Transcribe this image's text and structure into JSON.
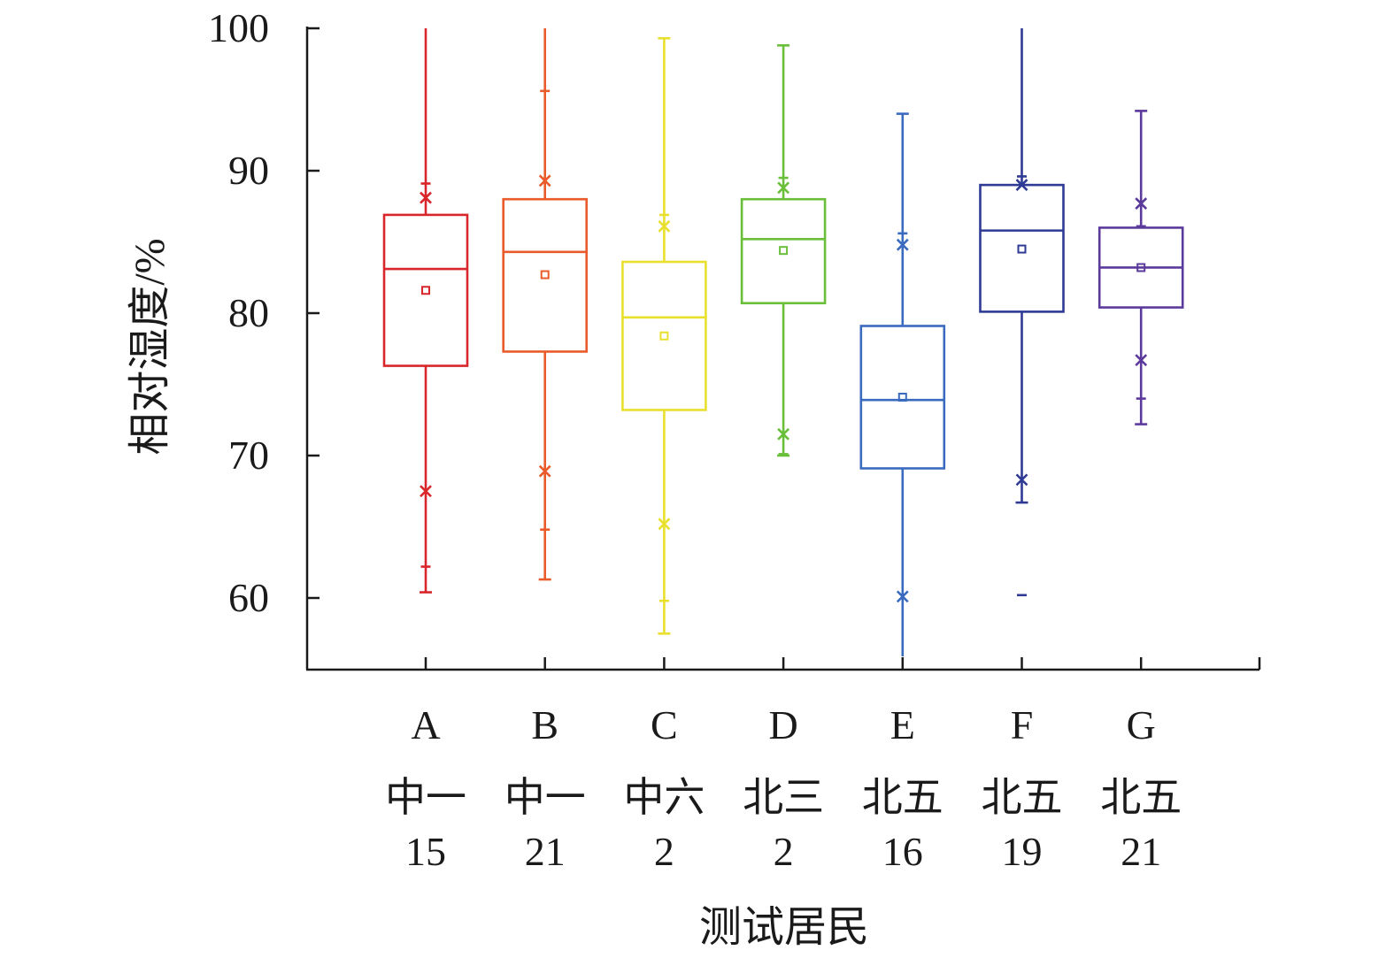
{
  "chart_data": {
    "type": "box",
    "xlabel": "测试居民",
    "ylabel": "相对湿度/%",
    "ylim": [
      55,
      100
    ],
    "yticks": [
      60,
      70,
      80,
      90,
      100
    ],
    "grid": false,
    "categories": [
      {
        "letter": "A",
        "site": "中一",
        "num": "15",
        "color": "#d8262b",
        "whisker_low": 60.4,
        "whisker_high": 100,
        "q1": 76.3,
        "median": 83.1,
        "q3": 86.9,
        "mean": 81.6,
        "x_high": 88.1,
        "x_low": 67.5,
        "p_high": 89.1,
        "p_low": 62.2
      },
      {
        "letter": "B",
        "site": "中一",
        "num": "21",
        "color": "#e95b2b",
        "whisker_low": 61.3,
        "whisker_high": 100,
        "q1": 77.3,
        "median": 84.3,
        "q3": 88.0,
        "mean": 82.7,
        "x_high": 89.3,
        "x_low": 68.9,
        "p_high": 95.6,
        "p_low": 64.8
      },
      {
        "letter": "C",
        "site": "中六",
        "num": "2",
        "color": "#e9e02e",
        "whisker_low": 57.5,
        "whisker_high": 99.3,
        "q1": 73.2,
        "median": 79.7,
        "q3": 83.6,
        "mean": 78.4,
        "x_high": 86.1,
        "x_low": 65.2,
        "p_high": 86.9,
        "p_low": 59.8
      },
      {
        "letter": "D",
        "site": "北三",
        "num": "2",
        "color": "#6abf3a",
        "whisker_low": 70.0,
        "whisker_high": 98.8,
        "q1": 80.7,
        "median": 85.2,
        "q3": 88.0,
        "mean": 84.4,
        "x_high": 88.8,
        "x_low": 71.5,
        "p_high": 89.5,
        "p_low": 70.1
      },
      {
        "letter": "E",
        "site": "北五",
        "num": "16",
        "color": "#3a6bbf",
        "whisker_low": 55.9,
        "whisker_high": 94.0,
        "q1": 69.1,
        "median": 73.9,
        "q3": 79.1,
        "mean": 74.1,
        "x_high": 84.8,
        "x_low": 60.1,
        "p_high": 85.6,
        "p_low": null
      },
      {
        "letter": "F",
        "site": "北五",
        "num": "19",
        "color": "#2e3a94",
        "whisker_low": 66.7,
        "whisker_high": 100,
        "q1": 80.1,
        "median": 85.8,
        "q3": 89.0,
        "mean": 84.5,
        "x_high": 89.0,
        "x_low": 68.3,
        "p_high": 89.6,
        "p_low": 60.2
      },
      {
        "letter": "G",
        "site": "北五",
        "num": "21",
        "color": "#5b3a9b",
        "whisker_low": 72.2,
        "whisker_high": 94.2,
        "q1": 80.4,
        "median": 83.2,
        "q3": 86.0,
        "mean": 83.2,
        "x_high": 87.7,
        "x_low": 76.7,
        "p_high": 86.1,
        "p_low": 74.0
      }
    ]
  }
}
